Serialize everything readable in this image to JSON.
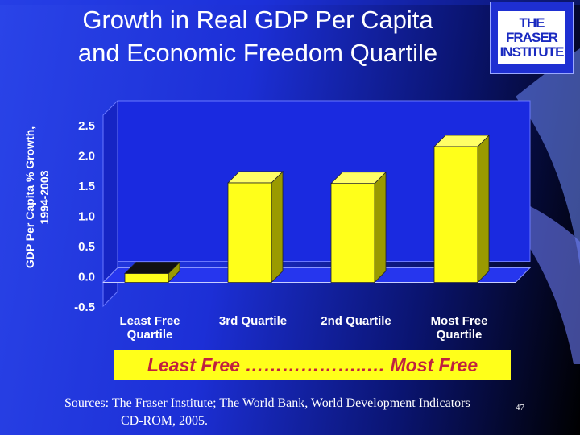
{
  "slide": {
    "title_line1": "Growth in Real GDP Per Capita",
    "title_line2": "and Economic Freedom Quartile",
    "logo_line1": "THE FRASER",
    "logo_line2": "INSTITUTE",
    "banner": "Least Free ………………..… Most Free",
    "sources_line1": "Sources: The Fraser Institute; The World Bank, World Development Indicators",
    "sources_line2": "CD-ROM, 2005.",
    "slide_number": "47",
    "colors": {
      "bar": "#ffff1a",
      "bar_first": "#ffff1a",
      "banner_text": "#c02040",
      "plot_bg": "#1a2ae0"
    }
  },
  "chart_data": {
    "type": "bar",
    "title": "",
    "ylabel_line1": "GDP Per Capita % Growth,",
    "ylabel_line2": "1994-2003",
    "xlabel": "",
    "categories": [
      [
        "Least Free",
        "Quartile"
      ],
      [
        "3rd Quartile"
      ],
      [
        "2nd Quartile"
      ],
      [
        "Most Free",
        "Quartile"
      ]
    ],
    "values": [
      0.12,
      1.62,
      1.61,
      2.22
    ],
    "ylim": [
      -0.5,
      2.5
    ],
    "yticks": [
      "2.5",
      "2.0",
      "1.5",
      "1.0",
      "0.5",
      "0.0",
      "-0.5"
    ],
    "ytick_values": [
      2.5,
      2.0,
      1.5,
      1.0,
      0.5,
      0.0,
      -0.5
    ],
    "grid": false,
    "legend": "none",
    "style": "3d"
  }
}
